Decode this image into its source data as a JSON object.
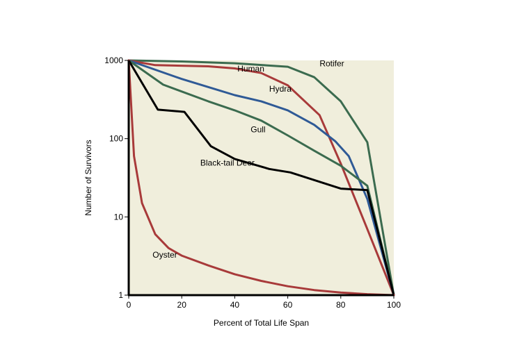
{
  "chart_data": {
    "type": "line",
    "xlabel": "Percent of Total Life Span",
    "ylabel": "Number of Survivors",
    "xlim": [
      0,
      100
    ],
    "ylim": [
      1,
      1000
    ],
    "y_scale": "log",
    "x_ticks": [
      0,
      20,
      40,
      60,
      80,
      100
    ],
    "y_ticks": [
      1,
      10,
      100,
      1000
    ],
    "x_tick_labels": [
      "0",
      "20",
      "40",
      "60",
      "80",
      "100"
    ],
    "y_tick_labels": [
      "1",
      "10",
      "100",
      "1000"
    ],
    "grid": false,
    "plot_background": "#f0eedc",
    "series": [
      {
        "name": "Rotifer",
        "color": "#3b6b4f",
        "label_at": [
          72,
          840
        ],
        "points": [
          [
            0,
            1000
          ],
          [
            20,
            970
          ],
          [
            40,
            920
          ],
          [
            60,
            830
          ],
          [
            70,
            610
          ],
          [
            80,
            300
          ],
          [
            90,
            90
          ],
          [
            100,
            1
          ]
        ]
      },
      {
        "name": "Human",
        "color": "#a83a3a",
        "label_at": [
          41,
          720
        ],
        "points": [
          [
            0,
            1000
          ],
          [
            10,
            870
          ],
          [
            30,
            840
          ],
          [
            40,
            790
          ],
          [
            50,
            690
          ],
          [
            60,
            480
          ],
          [
            72,
            200
          ],
          [
            80,
            48
          ],
          [
            90,
            7
          ],
          [
            100,
            1
          ]
        ]
      },
      {
        "name": "Hydra",
        "color": "#2f5a96",
        "label_at": [
          53,
          400
        ],
        "points": [
          [
            0,
            1000
          ],
          [
            20,
            580
          ],
          [
            40,
            360
          ],
          [
            50,
            300
          ],
          [
            60,
            230
          ],
          [
            70,
            150
          ],
          [
            78,
            92
          ],
          [
            83,
            60
          ],
          [
            90,
            17
          ],
          [
            100,
            1
          ]
        ]
      },
      {
        "name": "Gull",
        "color": "#3b6b4f",
        "label_at": [
          46,
          120
        ],
        "points": [
          [
            0,
            1000
          ],
          [
            13,
            490
          ],
          [
            30,
            300
          ],
          [
            40,
            230
          ],
          [
            50,
            170
          ],
          [
            60,
            110
          ],
          [
            70,
            70
          ],
          [
            80,
            45
          ],
          [
            90,
            25
          ],
          [
            100,
            1
          ]
        ]
      },
      {
        "name": "Black-tail Deer",
        "color": "#000000",
        "label_at": [
          27,
          45
        ],
        "points": [
          [
            0,
            1000
          ],
          [
            11,
            235
          ],
          [
            21,
            220
          ],
          [
            31,
            80
          ],
          [
            40,
            55
          ],
          [
            53,
            41
          ],
          [
            61,
            37
          ],
          [
            80,
            23
          ],
          [
            90,
            22
          ],
          [
            100,
            1
          ]
        ]
      },
      {
        "name": "Oyster",
        "color": "#a83a3a",
        "label_at": [
          9,
          3.0
        ],
        "points": [
          [
            0,
            1000
          ],
          [
            2,
            60
          ],
          [
            5,
            15
          ],
          [
            10,
            6
          ],
          [
            15,
            4
          ],
          [
            20,
            3.2
          ],
          [
            30,
            2.4
          ],
          [
            40,
            1.85
          ],
          [
            50,
            1.52
          ],
          [
            60,
            1.3
          ],
          [
            70,
            1.16
          ],
          [
            80,
            1.08
          ],
          [
            90,
            1.03
          ],
          [
            100,
            1
          ]
        ]
      }
    ]
  }
}
